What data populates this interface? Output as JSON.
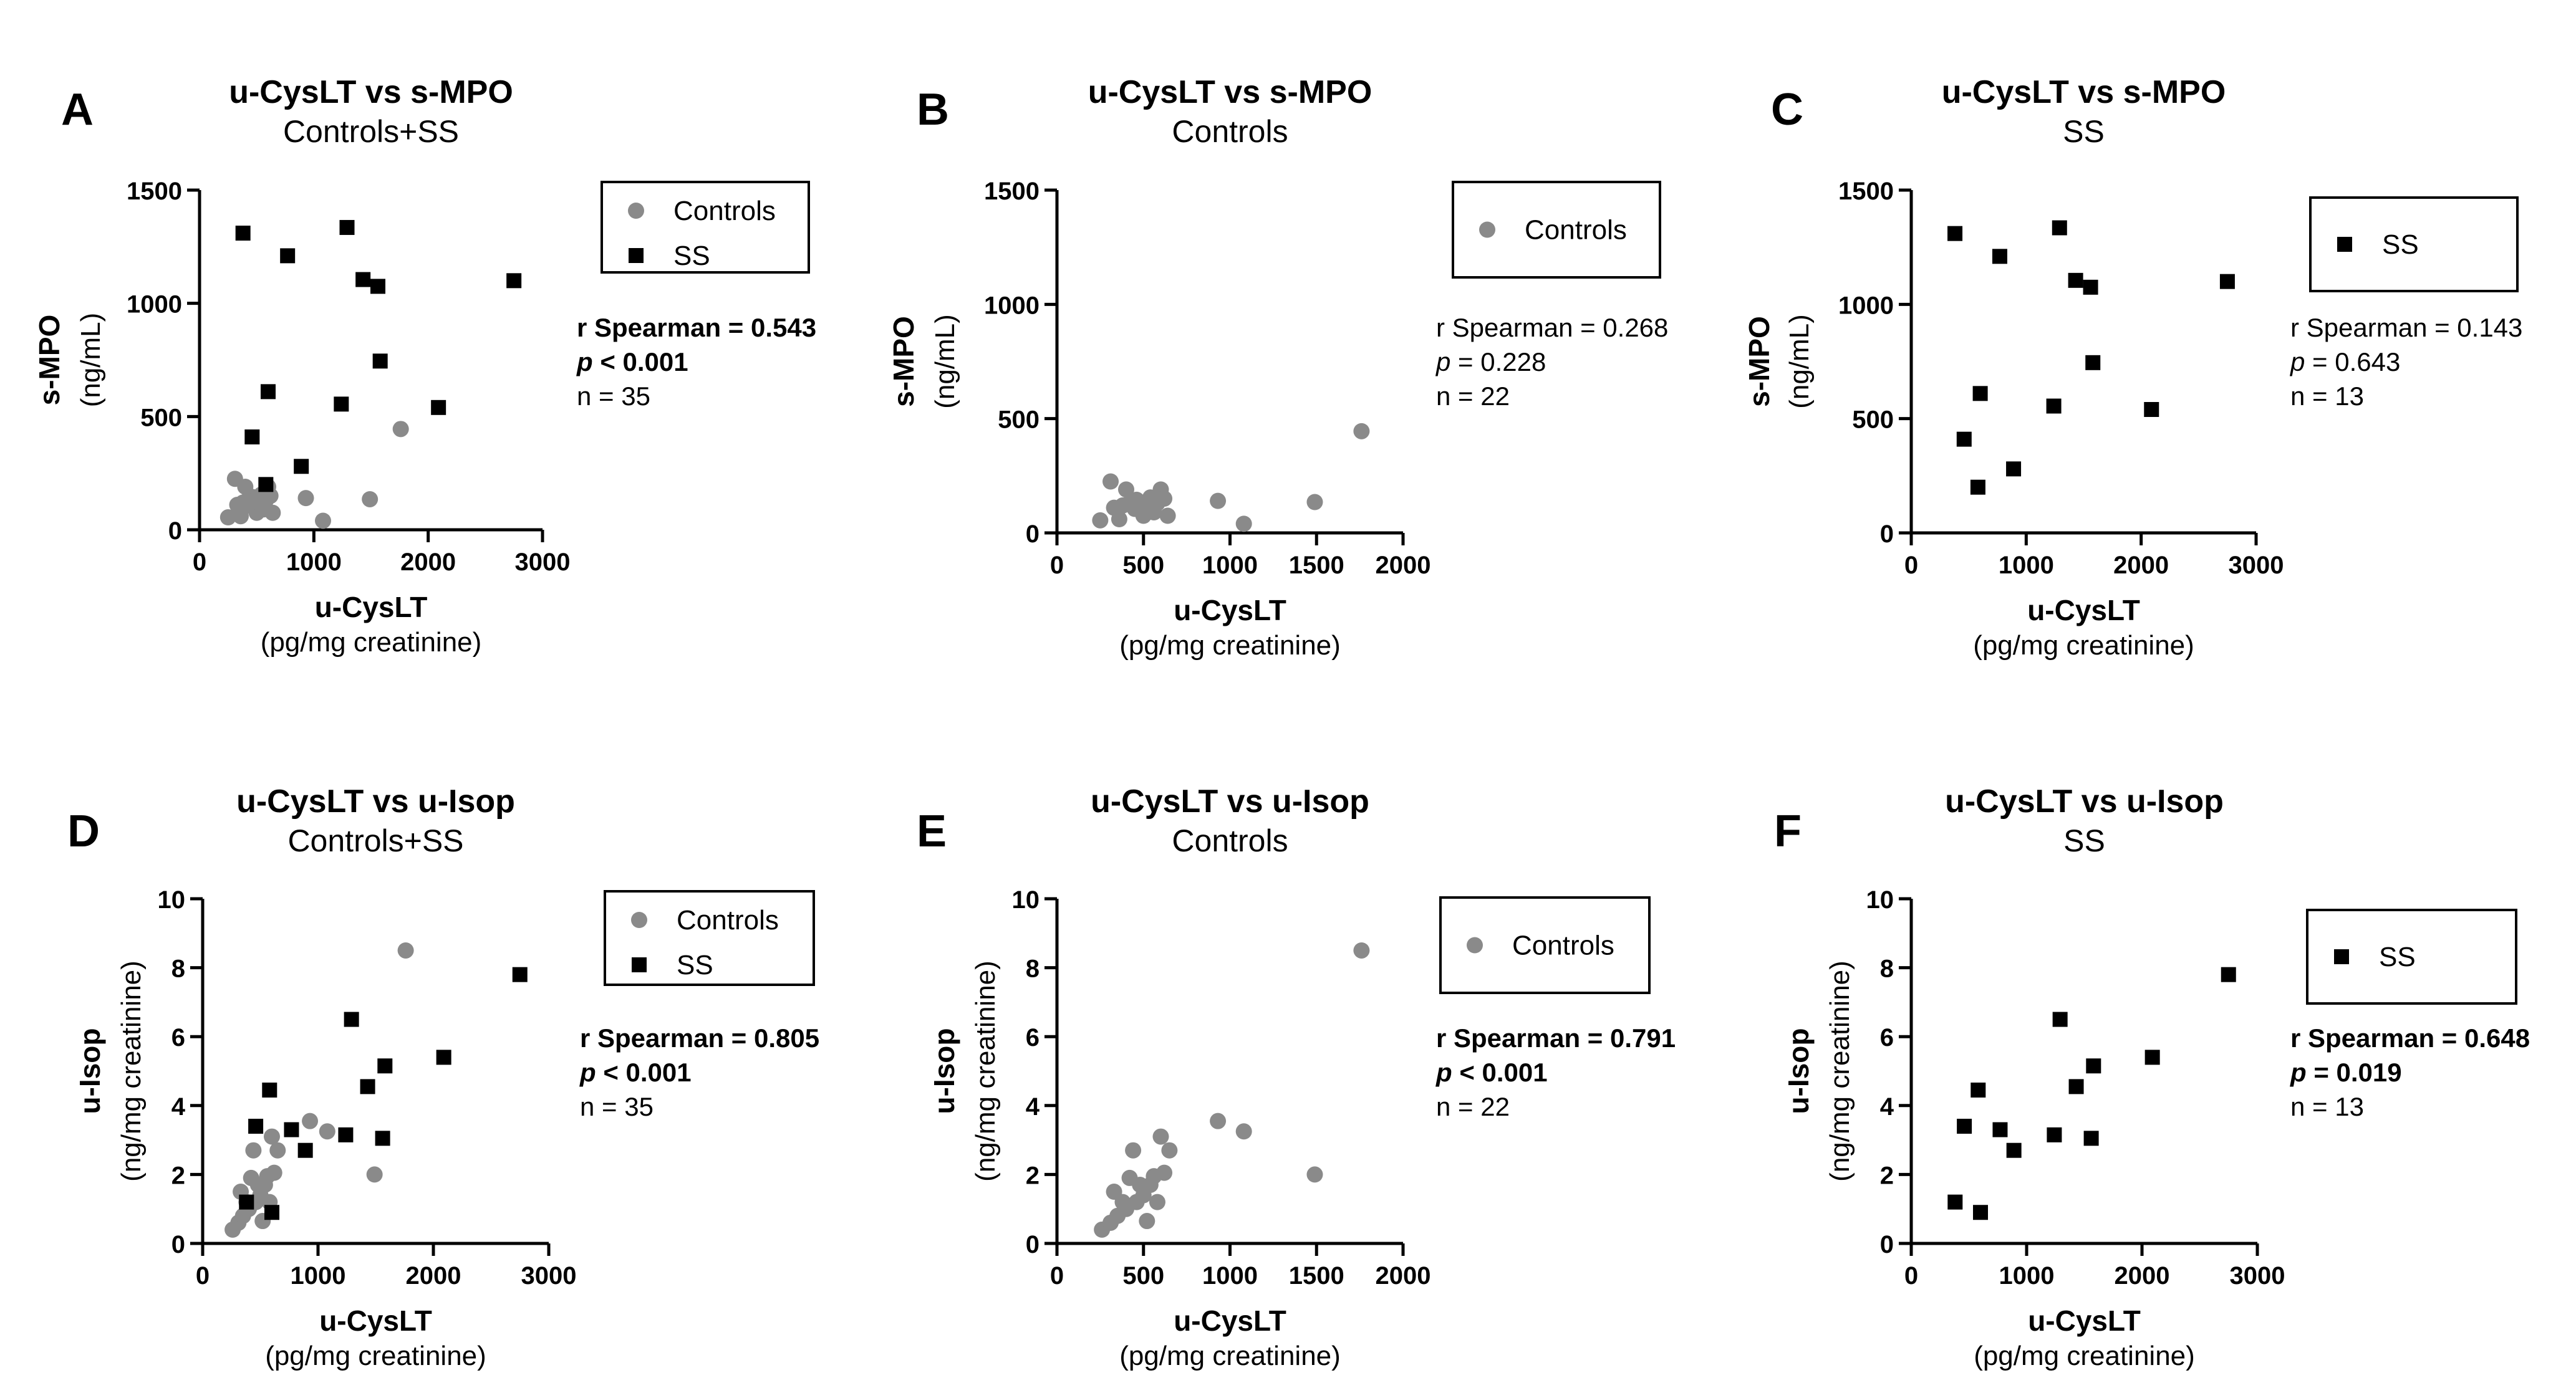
{
  "colors": {
    "controls": "#8a8a8a",
    "ss": "#000000",
    "axis": "#000000"
  },
  "chart_data": [
    {
      "panel": "A",
      "type": "scatter",
      "title": "u-CysLT vs s-MPO",
      "subtitle": "Controls+SS",
      "xlabel": "u-CysLT",
      "xunit": "(pg/mg creatinine)",
      "ylabel": "s-MPO",
      "yunit": "(ng/mL)",
      "xlim": [
        0,
        3000
      ],
      "ylim": [
        0,
        1500
      ],
      "xticks": [
        0,
        1000,
        2000,
        3000
      ],
      "yticks": [
        0,
        500,
        1000,
        1500
      ],
      "legend": [
        "Controls",
        "SS"
      ],
      "stats": {
        "r": "r Spearman = 0.543",
        "p_label": "p",
        "p_rest": " < 0.001",
        "n": "n = 35",
        "bold": true
      },
      "series": [
        {
          "name": "Controls",
          "marker": "circle",
          "points": [
            [
              250,
              55
            ],
            [
              310,
              225
            ],
            [
              330,
              110
            ],
            [
              360,
              60
            ],
            [
              380,
              120
            ],
            [
              400,
              190
            ],
            [
              420,
              130
            ],
            [
              450,
              105
            ],
            [
              460,
              145
            ],
            [
              480,
              130
            ],
            [
              500,
              75
            ],
            [
              520,
              120
            ],
            [
              540,
              155
            ],
            [
              560,
              90
            ],
            [
              580,
              130
            ],
            [
              600,
              190
            ],
            [
              620,
              150
            ],
            [
              640,
              75
            ],
            [
              930,
              140
            ],
            [
              1080,
              40
            ],
            [
              1490,
              135
            ],
            [
              1760,
              445
            ]
          ]
        },
        {
          "name": "SS",
          "marker": "square",
          "points": [
            [
              380,
              1310
            ],
            [
              460,
              410
            ],
            [
              580,
              200
            ],
            [
              600,
              610
            ],
            [
              770,
              1210
            ],
            [
              890,
              280
            ],
            [
              1240,
              555
            ],
            [
              1290,
              1335
            ],
            [
              1430,
              1105
            ],
            [
              1560,
              1075
            ],
            [
              1580,
              745
            ],
            [
              2090,
              540
            ],
            [
              2750,
              1100
            ]
          ]
        }
      ]
    },
    {
      "panel": "B",
      "type": "scatter",
      "title": "u-CysLT vs s-MPO",
      "subtitle": "Controls",
      "xlabel": "u-CysLT",
      "xunit": "(pg/mg creatinine)",
      "ylabel": "s-MPO",
      "yunit": "(ng/mL)",
      "xlim": [
        0,
        2000
      ],
      "ylim": [
        0,
        1500
      ],
      "xticks": [
        0,
        500,
        1000,
        1500,
        2000
      ],
      "yticks": [
        0,
        500,
        1000,
        1500
      ],
      "legend": [
        "Controls"
      ],
      "stats": {
        "r": "r Spearman = 0.268",
        "p_label": "p",
        "p_rest": " = 0.228",
        "n": "n = 22",
        "bold": false
      },
      "series": [
        {
          "name": "Controls",
          "marker": "circle",
          "points": [
            [
              250,
              55
            ],
            [
              310,
              225
            ],
            [
              330,
              110
            ],
            [
              360,
              60
            ],
            [
              380,
              120
            ],
            [
              400,
              190
            ],
            [
              420,
              130
            ],
            [
              450,
              105
            ],
            [
              460,
              145
            ],
            [
              480,
              130
            ],
            [
              500,
              75
            ],
            [
              520,
              120
            ],
            [
              540,
              155
            ],
            [
              560,
              90
            ],
            [
              580,
              130
            ],
            [
              600,
              190
            ],
            [
              620,
              150
            ],
            [
              640,
              75
            ],
            [
              930,
              140
            ],
            [
              1080,
              40
            ],
            [
              1490,
              135
            ],
            [
              1760,
              445
            ]
          ]
        }
      ]
    },
    {
      "panel": "C",
      "type": "scatter",
      "title": "u-CysLT vs s-MPO",
      "subtitle": "SS",
      "xlabel": "u-CysLT",
      "xunit": "(pg/mg creatinine)",
      "ylabel": "s-MPO",
      "yunit": "(ng/mL)",
      "xlim": [
        0,
        3000
      ],
      "ylim": [
        0,
        1500
      ],
      "xticks": [
        0,
        1000,
        2000,
        3000
      ],
      "yticks": [
        0,
        500,
        1000,
        1500
      ],
      "legend": [
        "SS"
      ],
      "stats": {
        "r": "r Spearman = 0.143",
        "p_label": "p",
        "p_rest": " = 0.643",
        "n": "n = 13",
        "bold": false
      },
      "series": [
        {
          "name": "SS",
          "marker": "square",
          "points": [
            [
              380,
              1310
            ],
            [
              460,
              410
            ],
            [
              580,
              200
            ],
            [
              600,
              610
            ],
            [
              770,
              1210
            ],
            [
              890,
              280
            ],
            [
              1240,
              555
            ],
            [
              1290,
              1335
            ],
            [
              1430,
              1105
            ],
            [
              1560,
              1075
            ],
            [
              1580,
              745
            ],
            [
              2090,
              540
            ],
            [
              2750,
              1100
            ]
          ]
        }
      ]
    },
    {
      "panel": "D",
      "type": "scatter",
      "title": "u-CysLT vs u-Isop",
      "subtitle": "Controls+SS",
      "xlabel": "u-CysLT",
      "xunit": "(pg/mg creatinine)",
      "ylabel": "u-Isop",
      "yunit": "(ng/mg creatinine)",
      "xlim": [
        0,
        3000
      ],
      "ylim": [
        0,
        10
      ],
      "xticks": [
        0,
        1000,
        2000,
        3000
      ],
      "yticks": [
        0,
        2,
        4,
        6,
        8,
        10
      ],
      "legend": [
        "Controls",
        "SS"
      ],
      "stats": {
        "r": "r Spearman = 0.805",
        "p_label": "p",
        "p_rest": " < 0.001",
        "n": "n = 35",
        "bold": true
      },
      "series": [
        {
          "name": "Controls",
          "marker": "circle",
          "points": [
            [
              260,
              0.4
            ],
            [
              310,
              0.6
            ],
            [
              330,
              1.5
            ],
            [
              350,
              0.8
            ],
            [
              380,
              1.2
            ],
            [
              400,
              1.0
            ],
            [
              420,
              1.9
            ],
            [
              440,
              2.7
            ],
            [
              460,
              1.2
            ],
            [
              480,
              1.7
            ],
            [
              500,
              1.4
            ],
            [
              520,
              0.65
            ],
            [
              540,
              1.7
            ],
            [
              560,
              1.95
            ],
            [
              580,
              1.2
            ],
            [
              600,
              3.1
            ],
            [
              620,
              2.05
            ],
            [
              650,
              2.7
            ],
            [
              930,
              3.55
            ],
            [
              1080,
              3.25
            ],
            [
              1490,
              2.0
            ],
            [
              1760,
              8.5
            ]
          ]
        },
        {
          "name": "SS",
          "marker": "square",
          "points": [
            [
              380,
              1.2
            ],
            [
              460,
              3.4
            ],
            [
              580,
              4.45
            ],
            [
              600,
              0.9
            ],
            [
              770,
              3.3
            ],
            [
              890,
              2.7
            ],
            [
              1240,
              3.15
            ],
            [
              1290,
              6.5
            ],
            [
              1430,
              4.55
            ],
            [
              1560,
              3.05
            ],
            [
              1580,
              5.15
            ],
            [
              2090,
              5.4
            ],
            [
              2750,
              7.8
            ]
          ]
        }
      ]
    },
    {
      "panel": "E",
      "type": "scatter",
      "title": "u-CysLT vs u-Isop",
      "subtitle": "Controls",
      "xlabel": "u-CysLT",
      "xunit": "(pg/mg creatinine)",
      "ylabel": "u-Isop",
      "yunit": "(ng/mg creatinine)",
      "xlim": [
        0,
        2000
      ],
      "ylim": [
        0,
        10
      ],
      "xticks": [
        0,
        500,
        1000,
        1500,
        2000
      ],
      "yticks": [
        0,
        2,
        4,
        6,
        8,
        10
      ],
      "legend": [
        "Controls"
      ],
      "stats": {
        "r": "r Spearman = 0.791",
        "p_label": "p",
        "p_rest": " < 0.001",
        "n": "n = 22",
        "bold": true
      },
      "series": [
        {
          "name": "Controls",
          "marker": "circle",
          "points": [
            [
              260,
              0.4
            ],
            [
              310,
              0.6
            ],
            [
              330,
              1.5
            ],
            [
              350,
              0.8
            ],
            [
              380,
              1.2
            ],
            [
              400,
              1.0
            ],
            [
              420,
              1.9
            ],
            [
              440,
              2.7
            ],
            [
              460,
              1.2
            ],
            [
              480,
              1.7
            ],
            [
              500,
              1.4
            ],
            [
              520,
              0.65
            ],
            [
              540,
              1.7
            ],
            [
              560,
              1.95
            ],
            [
              580,
              1.2
            ],
            [
              600,
              3.1
            ],
            [
              620,
              2.05
            ],
            [
              650,
              2.7
            ],
            [
              930,
              3.55
            ],
            [
              1080,
              3.25
            ],
            [
              1490,
              2.0
            ],
            [
              1760,
              8.5
            ]
          ]
        }
      ]
    },
    {
      "panel": "F",
      "type": "scatter",
      "title": "u-CysLT vs u-Isop",
      "subtitle": "SS",
      "xlabel": "u-CysLT",
      "xunit": "(pg/mg creatinine)",
      "ylabel": "u-Isop",
      "yunit": "(ng/mg creatinine)",
      "xlim": [
        0,
        3000
      ],
      "ylim": [
        0,
        10
      ],
      "xticks": [
        0,
        1000,
        2000,
        3000
      ],
      "yticks": [
        0,
        2,
        4,
        6,
        8,
        10
      ],
      "legend": [
        "SS"
      ],
      "stats": {
        "r": "r Spearman = 0.648",
        "p_label": "p",
        "p_rest": " = 0.019",
        "n": "n = 13",
        "bold": true
      },
      "series": [
        {
          "name": "SS",
          "marker": "square",
          "points": [
            [
              380,
              1.2
            ],
            [
              460,
              3.4
            ],
            [
              580,
              4.45
            ],
            [
              600,
              0.9
            ],
            [
              770,
              3.3
            ],
            [
              890,
              2.7
            ],
            [
              1240,
              3.15
            ],
            [
              1290,
              6.5
            ],
            [
              1430,
              4.55
            ],
            [
              1560,
              3.05
            ],
            [
              1580,
              5.15
            ],
            [
              2090,
              5.4
            ],
            [
              2750,
              7.8
            ]
          ]
        }
      ]
    }
  ]
}
